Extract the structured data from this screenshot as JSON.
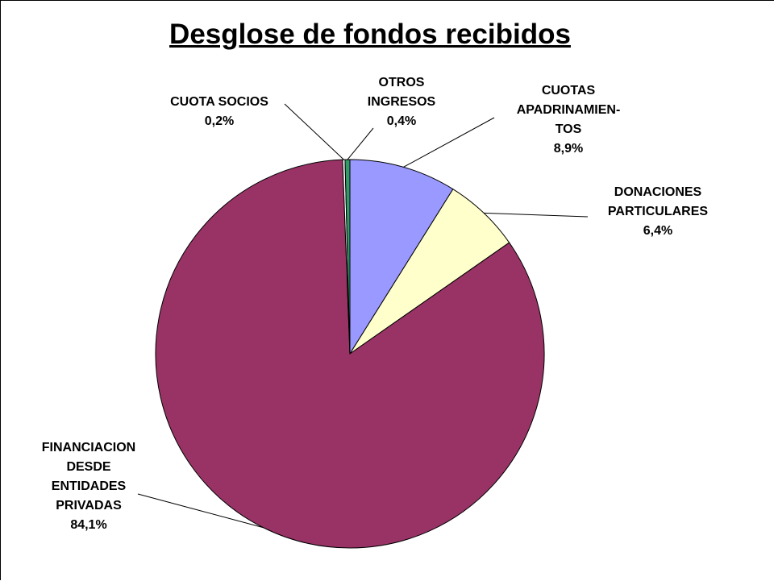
{
  "chart_data": {
    "type": "pie",
    "title": "Desglose de fondos recibidos",
    "categories": [
      "CUOTAS APADRINAMIEN-TOS",
      "DONACIONES PARTICULARES",
      "FINANCIACION DESDE ENTIDADES PRIVADAS",
      "CUOTA SOCIOS",
      "OTROS INGRESOS"
    ],
    "values": [
      8.9,
      6.4,
      84.1,
      0.2,
      0.4
    ],
    "value_labels": [
      "8,9%",
      "6,4%",
      "84,1%",
      "0,2%",
      "0,4%"
    ],
    "colors": [
      "#9999ff",
      "#ffffcc",
      "#993366",
      "#ffffff",
      "#339966"
    ]
  }
}
